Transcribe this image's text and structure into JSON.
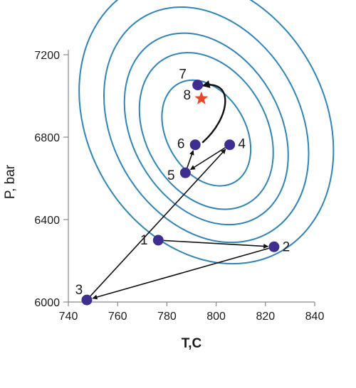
{
  "chart_data": {
    "type": "scatter",
    "title": "",
    "xlabel": "T,C",
    "ylabel": "P, bar",
    "xlim": [
      740,
      840
    ],
    "ylim": [
      6000,
      7200
    ],
    "x_ticks": [
      740,
      760,
      780,
      800,
      820,
      840
    ],
    "y_ticks": [
      6000,
      6400,
      6800,
      7200
    ],
    "grid": false,
    "points": [
      {
        "label": "1",
        "x": 776.5,
        "y": 6300
      },
      {
        "label": "2",
        "x": 823.5,
        "y": 6268
      },
      {
        "label": "3",
        "x": 747.5,
        "y": 6010
      },
      {
        "label": "4",
        "x": 805.5,
        "y": 6763
      },
      {
        "label": "5",
        "x": 787.5,
        "y": 6627
      },
      {
        "label": "6",
        "x": 791.5,
        "y": 6763
      },
      {
        "label": "7",
        "x": 792.5,
        "y": 7053
      }
    ],
    "optimum": {
      "label": "8",
      "x": 794,
      "y": 6987
    },
    "arrows": [
      {
        "from": "1",
        "to": "2"
      },
      {
        "from": "2",
        "to": "3"
      },
      {
        "from": "3",
        "to": "4"
      },
      {
        "from": "4",
        "to": "5"
      },
      {
        "from": "5",
        "to": "6"
      }
    ],
    "curved_arrow": {
      "from": "6",
      "to": "7"
    },
    "contours": [
      {
        "cx": 796,
        "cy": 6820,
        "rx": 16,
        "ry": 275
      },
      {
        "cx": 796,
        "cy": 6830,
        "rx": 24.5,
        "ry": 405
      },
      {
        "cx": 796,
        "cy": 6840,
        "rx": 30,
        "ry": 495
      },
      {
        "cx": 796,
        "cy": 6860,
        "rx": 38,
        "ry": 605
      },
      {
        "cx": 796,
        "cy": 6880,
        "rx": 48,
        "ry": 730
      }
    ],
    "colors": {
      "contour": "#2f85b8",
      "point": "#3d2e8f",
      "optimum": "#e8482a",
      "arrow": "#111111",
      "axis": "#888888"
    }
  }
}
